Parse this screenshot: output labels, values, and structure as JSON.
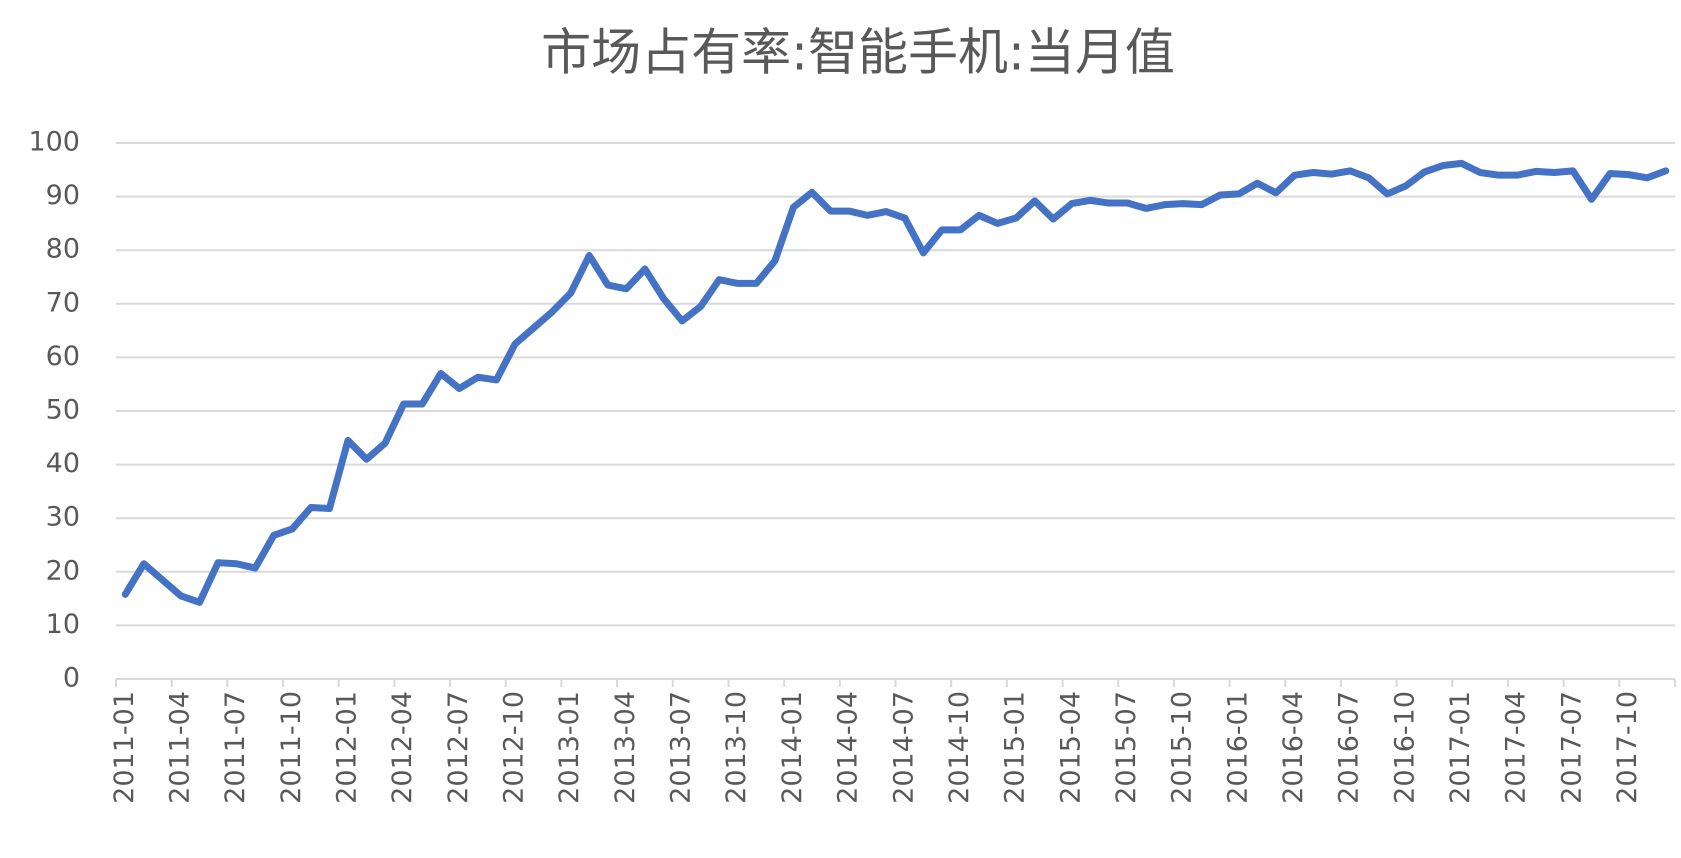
{
  "chart_data": {
    "type": "line",
    "title": "市场占有率:智能手机:当月值",
    "categories": [
      "2011-01",
      null,
      null,
      "2011-04",
      null,
      null,
      "2011-07",
      null,
      null,
      "2011-10",
      null,
      null,
      "2012-01",
      null,
      null,
      "2012-04",
      null,
      null,
      "2012-07",
      null,
      null,
      "2012-10",
      null,
      null,
      "2013-01",
      null,
      null,
      "2013-04",
      null,
      null,
      "2013-07",
      null,
      null,
      "2013-10",
      null,
      null,
      "2014-01",
      null,
      null,
      "2014-04",
      null,
      null,
      "2014-07",
      null,
      null,
      "2014-10",
      null,
      null,
      "2015-01",
      null,
      null,
      "2015-04",
      null,
      null,
      "2015-07",
      null,
      null,
      "2015-10",
      null,
      null,
      "2016-01",
      null,
      null,
      "2016-04",
      null,
      null,
      "2016-07",
      null,
      null,
      "2016-10",
      null,
      null,
      "2017-01",
      null,
      null,
      "2017-04",
      null,
      null,
      "2017-07",
      null,
      null,
      "2017-10",
      null,
      null
    ],
    "values": [
      15.8,
      21.5,
      18.5,
      15.5,
      14.3,
      21.7,
      21.5,
      20.7,
      26.8,
      28,
      32,
      31.8,
      44.5,
      41,
      44,
      51.3,
      51.3,
      57,
      54.2,
      56.3,
      55.8,
      62.5,
      65.5,
      68.5,
      72,
      79,
      73.5,
      72.8,
      76.5,
      71,
      66.8,
      69.5,
      74.5,
      73.8,
      73.8,
      78,
      88,
      90.8,
      87.3,
      87.3,
      86.5,
      87.2,
      86,
      79.5,
      83.8,
      83.8,
      86.5,
      85,
      86,
      89.2,
      85.8,
      88.7,
      89.3,
      88.8,
      88.8,
      87.8,
      88.5,
      88.7,
      88.5,
      90.3,
      90.5,
      92.5,
      90.7,
      94,
      94.5,
      94.2,
      94.8,
      93.5,
      90.5,
      92,
      94.6,
      95.8,
      96.2,
      94.5,
      94,
      94,
      94.7,
      94.5,
      94.8,
      89.5,
      94.3,
      94.1,
      93.5,
      94.8
    ],
    "color": "#4472c4",
    "ylim": [
      0,
      100
    ],
    "yticks": [
      0,
      10,
      20,
      30,
      40,
      50,
      60,
      70,
      80,
      90,
      100
    ],
    "grid": true
  }
}
